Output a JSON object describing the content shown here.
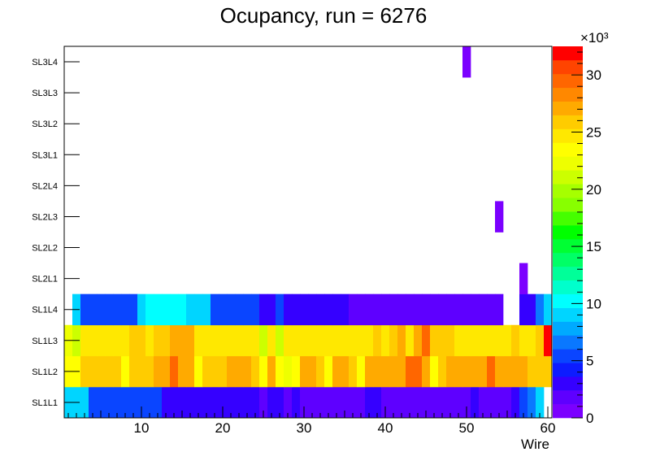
{
  "chart_data": {
    "type": "heatmap",
    "title": "Ocupancy, run = 6276",
    "xlabel": "Wire",
    "ylabel": "",
    "x_range": [
      0.5,
      60.5
    ],
    "x_ticks": [
      10,
      20,
      30,
      40,
      50,
      60
    ],
    "y_categories": [
      "SL1L1",
      "SL1L2",
      "SL1L3",
      "SL1L4",
      "SL2L1",
      "SL2L2",
      "SL2L3",
      "SL2L4",
      "SL3L1",
      "SL3L2",
      "SL3L3",
      "SL3L4"
    ],
    "z_range": [
      0,
      32500
    ],
    "z_ticks": [
      0,
      5,
      10,
      15,
      20,
      25,
      30
    ],
    "z_multiplier": "×10³",
    "palette": [
      "#7b00ff",
      "#5e00ff",
      "#3500ff",
      "#0d1cff",
      "#0a45ff",
      "#0a78ff",
      "#00aaff",
      "#00d5ff",
      "#00ffff",
      "#00ffcc",
      "#00ff99",
      "#00ff66",
      "#00ff33",
      "#00ff00",
      "#45ff00",
      "#88ff00",
      "#a6ff00",
      "#ccff00",
      "#eeff00",
      "#ffff00",
      "#ffe800",
      "#ffcc00",
      "#ffaa00",
      "#ff8800",
      "#ff6600",
      "#ff4400",
      "#ff0000"
    ],
    "rows": [
      {
        "layer": "SL1L1",
        "values": [
          8500,
          8500,
          8500,
          6000,
          5500,
          5500,
          5500,
          5500,
          5500,
          5500,
          5500,
          5500,
          3500,
          3500,
          3500,
          3500,
          3500,
          3500,
          3500,
          3500,
          3500,
          3500,
          3500,
          2800,
          2200,
          3000,
          3000,
          2200,
          2800,
          2200,
          1800,
          1800,
          1800,
          1800,
          1800,
          1800,
          1800,
          3000,
          3000,
          1800,
          1800,
          1800,
          1800,
          1800,
          1800,
          1800,
          1800,
          1800,
          1800,
          1800,
          3000,
          1500,
          1500,
          1500,
          1500,
          3000,
          5000,
          6500,
          8500,
          0
        ]
      },
      {
        "layer": "SL1L2",
        "values": [
          24000,
          24000,
          26000,
          26000,
          26000,
          26000,
          26000,
          24000,
          26000,
          26000,
          26000,
          27500,
          27500,
          30000,
          27500,
          27500,
          24000,
          26000,
          26000,
          26000,
          27500,
          27500,
          27500,
          26000,
          24000,
          27500,
          24000,
          22500,
          24000,
          27500,
          27500,
          26000,
          24000,
          27500,
          27500,
          26000,
          24000,
          27500,
          27500,
          27500,
          27500,
          27500,
          30000,
          30000,
          27500,
          24000,
          26000,
          27500,
          27500,
          27500,
          27500,
          27500,
          30000,
          27500,
          27500,
          27500,
          27500,
          26000,
          26000,
          26000
        ]
      },
      {
        "layer": "SL1L3",
        "values": [
          22500,
          21000,
          24500,
          24500,
          24500,
          24500,
          24500,
          24500,
          26000,
          26000,
          24500,
          26000,
          26000,
          27500,
          27500,
          27500,
          24500,
          24500,
          24500,
          24500,
          24500,
          24500,
          24500,
          24500,
          21000,
          24500,
          21000,
          24500,
          24500,
          24500,
          24500,
          24500,
          24500,
          24500,
          24500,
          24500,
          24500,
          24500,
          26000,
          24500,
          26000,
          27500,
          24500,
          27500,
          30000,
          26000,
          26000,
          26000,
          24500,
          24500,
          24500,
          24500,
          24500,
          24500,
          24500,
          26000,
          24500,
          24500,
          26000,
          32000
        ]
      },
      {
        "layer": "SL1L4",
        "values": [
          0,
          8500,
          5000,
          5000,
          5000,
          5000,
          5000,
          5000,
          5000,
          8500,
          10000,
          10000,
          10000,
          10000,
          10000,
          8500,
          8500,
          8500,
          5000,
          5000,
          5000,
          5000,
          5000,
          5000,
          3000,
          3000,
          5000,
          3000,
          3000,
          3000,
          3000,
          3000,
          3000,
          3000,
          3000,
          1500,
          1500,
          1500,
          1500,
          1500,
          1500,
          1500,
          1500,
          1500,
          1500,
          1500,
          1500,
          1500,
          1500,
          1500,
          1500,
          1500,
          1500,
          1500,
          0,
          0,
          3000,
          3000,
          6500,
          8500
        ]
      },
      {
        "layer": "SL2L1",
        "values": [
          0,
          0,
          0,
          0,
          0,
          0,
          0,
          0,
          0,
          0,
          0,
          0,
          0,
          0,
          0,
          0,
          0,
          0,
          0,
          0,
          0,
          0,
          0,
          0,
          0,
          0,
          0,
          0,
          0,
          0,
          0,
          0,
          0,
          0,
          0,
          0,
          0,
          0,
          0,
          0,
          0,
          0,
          0,
          0,
          0,
          0,
          0,
          0,
          0,
          0,
          0,
          0,
          0,
          0,
          0,
          0,
          1000,
          0,
          0,
          0
        ]
      },
      {
        "layer": "SL2L2",
        "values": [
          0,
          0,
          0,
          0,
          0,
          0,
          0,
          0,
          0,
          0,
          0,
          0,
          0,
          0,
          0,
          0,
          0,
          0,
          0,
          0,
          0,
          0,
          0,
          0,
          0,
          0,
          0,
          0,
          0,
          0,
          0,
          0,
          0,
          0,
          0,
          0,
          0,
          0,
          0,
          0,
          0,
          0,
          0,
          0,
          0,
          0,
          0,
          0,
          0,
          0,
          0,
          0,
          0,
          0,
          0,
          0,
          0,
          0,
          0,
          0
        ]
      },
      {
        "layer": "SL2L3",
        "values": [
          0,
          0,
          0,
          0,
          0,
          0,
          0,
          0,
          0,
          0,
          0,
          0,
          0,
          0,
          0,
          0,
          0,
          0,
          0,
          0,
          0,
          0,
          0,
          0,
          0,
          0,
          0,
          0,
          0,
          0,
          0,
          0,
          0,
          0,
          0,
          0,
          0,
          0,
          0,
          0,
          0,
          0,
          0,
          0,
          0,
          0,
          0,
          0,
          0,
          0,
          0,
          0,
          0,
          1000,
          0,
          0,
          0,
          0,
          0,
          0
        ]
      },
      {
        "layer": "SL2L4",
        "values": [
          0,
          0,
          0,
          0,
          0,
          0,
          0,
          0,
          0,
          0,
          0,
          0,
          0,
          0,
          0,
          0,
          0,
          0,
          0,
          0,
          0,
          0,
          0,
          0,
          0,
          0,
          0,
          0,
          0,
          0,
          0,
          0,
          0,
          0,
          0,
          0,
          0,
          0,
          0,
          0,
          0,
          0,
          0,
          0,
          0,
          0,
          0,
          0,
          0,
          0,
          0,
          0,
          0,
          0,
          0,
          0,
          0,
          0,
          0,
          0
        ]
      },
      {
        "layer": "SL3L1",
        "values": [
          0,
          0,
          0,
          0,
          0,
          0,
          0,
          0,
          0,
          0,
          0,
          0,
          0,
          0,
          0,
          0,
          0,
          0,
          0,
          0,
          0,
          0,
          0,
          0,
          0,
          0,
          0,
          0,
          0,
          0,
          0,
          0,
          0,
          0,
          0,
          0,
          0,
          0,
          0,
          0,
          0,
          0,
          0,
          0,
          0,
          0,
          0,
          0,
          0,
          0,
          0,
          0,
          0,
          0,
          0,
          0,
          0,
          0,
          0,
          0
        ]
      },
      {
        "layer": "SL3L2",
        "values": [
          0,
          0,
          0,
          0,
          0,
          0,
          0,
          0,
          0,
          0,
          0,
          0,
          0,
          0,
          0,
          0,
          0,
          0,
          0,
          0,
          0,
          0,
          0,
          0,
          0,
          0,
          0,
          0,
          0,
          0,
          0,
          0,
          0,
          0,
          0,
          0,
          0,
          0,
          0,
          0,
          0,
          0,
          0,
          0,
          0,
          0,
          0,
          0,
          0,
          0,
          0,
          0,
          0,
          0,
          0,
          0,
          0,
          0,
          0,
          0
        ]
      },
      {
        "layer": "SL3L3",
        "values": [
          0,
          0,
          0,
          0,
          0,
          0,
          0,
          0,
          0,
          0,
          0,
          0,
          0,
          0,
          0,
          0,
          0,
          0,
          0,
          0,
          0,
          0,
          0,
          0,
          0,
          0,
          0,
          0,
          0,
          0,
          0,
          0,
          0,
          0,
          0,
          0,
          0,
          0,
          0,
          0,
          0,
          0,
          0,
          0,
          0,
          0,
          0,
          0,
          0,
          0,
          0,
          0,
          0,
          0,
          0,
          0,
          0,
          0,
          0,
          0
        ]
      },
      {
        "layer": "SL3L4",
        "values": [
          0,
          0,
          0,
          0,
          0,
          0,
          0,
          0,
          0,
          0,
          0,
          0,
          0,
          0,
          0,
          0,
          0,
          0,
          0,
          0,
          0,
          0,
          0,
          0,
          0,
          0,
          0,
          0,
          0,
          0,
          0,
          0,
          0,
          0,
          0,
          0,
          0,
          0,
          0,
          0,
          0,
          0,
          0,
          0,
          0,
          0,
          0,
          0,
          0,
          1000,
          0,
          0,
          0,
          0,
          0,
          0,
          0,
          0,
          0,
          0
        ]
      }
    ]
  }
}
